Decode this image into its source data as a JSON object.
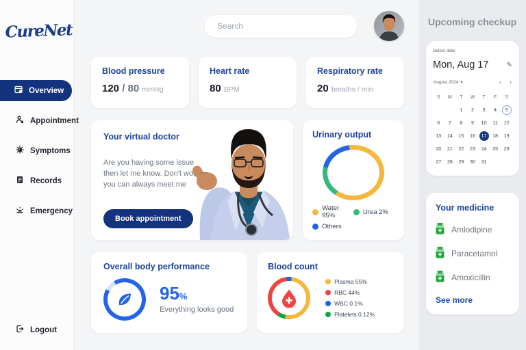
{
  "app": {
    "name": "CureNet"
  },
  "sidebar": {
    "items": [
      {
        "label": "Overview"
      },
      {
        "label": "Appointment"
      },
      {
        "label": "Symptoms"
      },
      {
        "label": "Records"
      },
      {
        "label": "Emergency"
      }
    ],
    "logout": "Logout"
  },
  "header": {
    "search_placeholder": "Search"
  },
  "vitals": [
    {
      "title": "Blood pressure",
      "value": "120",
      "secondary": " / 80 ",
      "unit": "mmHg"
    },
    {
      "title": "Heart rate",
      "value": "80",
      "secondary": " ",
      "unit": "BPM"
    },
    {
      "title": "Respiratory rate",
      "value": "20",
      "secondary": " ",
      "unit": "breaths / min"
    }
  ],
  "virtual_doctor": {
    "title": "Your virtual doctor",
    "description": "Are you having some issue then let me know. Don't worry you can always meet me",
    "button": "Book appointment"
  },
  "urinary_output": {
    "title": "Urinary output",
    "legend": [
      {
        "label": "Water 95%",
        "color": "#F5B73D"
      },
      {
        "label": "Urea 2%",
        "color": "#35B97C"
      },
      {
        "label": "Others",
        "color": "#2264E5"
      }
    ]
  },
  "performance": {
    "title": "Overall body performance",
    "value": "95",
    "unit": "%",
    "caption": "Everything looks good"
  },
  "blood_count": {
    "title": "Blood count",
    "legend": [
      {
        "label": "Plasma 55%",
        "color": "#F5B73D"
      },
      {
        "label": "RBC 44%",
        "color": "#EE4441"
      },
      {
        "label": "WBC 0.1%",
        "color": "#1467F0"
      },
      {
        "label": "Platelets 0.12%",
        "color": "#0DA642"
      }
    ]
  },
  "right_panel": {
    "title": "Upcoming checkup",
    "calendar": {
      "select_label": "Select date",
      "selected_date": "Mon, Aug 17",
      "edit_icon": "✎",
      "month_label": "August 2024",
      "caret": "▾",
      "prev": "‹",
      "next": "›",
      "weekdays": [
        "S",
        "M",
        "T",
        "W",
        "T",
        "F",
        "S"
      ],
      "days": [
        "",
        "",
        "1",
        "2",
        "3",
        "4",
        "5",
        "6",
        "7",
        "8",
        "9",
        "10",
        "11",
        "12",
        "13",
        "14",
        "15",
        "16",
        "17",
        "18",
        "19",
        "20",
        "21",
        "22",
        "23",
        "24",
        "25",
        "26",
        "27",
        "28",
        "29",
        "30",
        "31"
      ],
      "outlined_day": "5",
      "selected_day": "17"
    },
    "medicine": {
      "title": "Your medicine",
      "items": [
        "Amlodipine",
        "Paracetamol",
        "Amoxicillin"
      ],
      "see_more": "See more"
    }
  },
  "chart_data": [
    {
      "type": "pie",
      "title": "Urinary output",
      "labels": [
        "Water",
        "Urea",
        "Others"
      ],
      "values": [
        95,
        2,
        3
      ],
      "colors": [
        "#F5B73D",
        "#35B97C",
        "#2264E5"
      ],
      "display": "donut"
    },
    {
      "type": "pie",
      "title": "Blood count",
      "labels": [
        "Plasma",
        "RBC",
        "WBC",
        "Platelets"
      ],
      "values": [
        55,
        44,
        0.1,
        0.12
      ],
      "colors": [
        "#F5B73D",
        "#EE4441",
        "#1467F0",
        "#0DA642"
      ],
      "display": "donut"
    },
    {
      "type": "gauge",
      "title": "Overall body performance",
      "value": 95,
      "max": 100,
      "color": "#2563EB"
    }
  ],
  "colors": {
    "navy": "#14337E",
    "title_blue": "#1B4499",
    "accent_blue": "#2563EB",
    "medicine_green": "#1FA73C"
  }
}
